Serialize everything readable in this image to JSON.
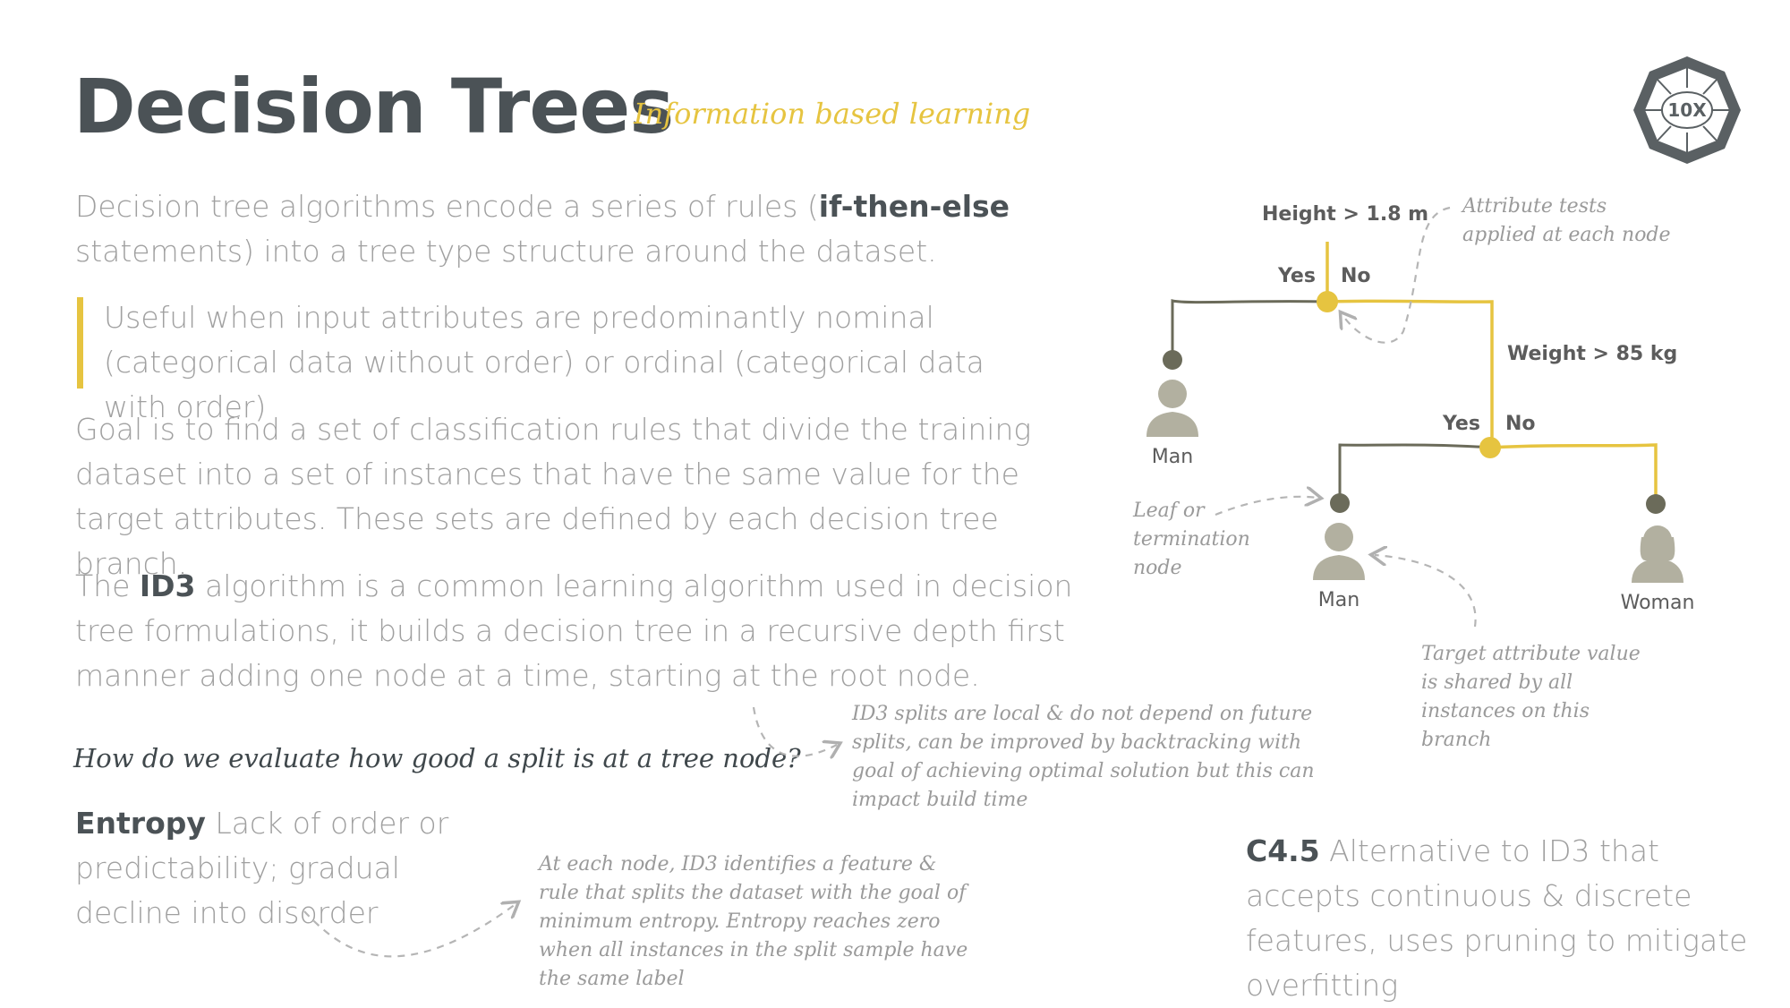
{
  "header": {
    "title": "Decision Trees",
    "subtitle": "Information based learning",
    "logo_text": "10X"
  },
  "paragraphs": {
    "p1_pre": "Decision tree algorithms encode a series of rules (",
    "p1_bold": "if-then-else",
    "p1_post": " statements) into a tree type structure around the dataset.",
    "quote": "Useful when input attributes are predominantly nominal (categorical data without order) or ordinal (categorical data with order)",
    "p2": "Goal is to find a set of classification rules that divide the training dataset into a set of instances that have the same value for the target attributes. These sets are defined by each decision tree branch.",
    "p3_pre": "The ",
    "p3_bold": "ID3",
    "p3_post": " algorithm is a common learning algorithm used in decision tree formulations, it builds a decision tree in a recursive depth first manner adding one node at a time, starting at the root node."
  },
  "question": "How do we evaluate how good a split is at a tree node?",
  "entropy": {
    "term": "Entropy",
    "definition": " Lack of order or predictability; gradual decline into disorder"
  },
  "c45": {
    "term": "C4.5",
    "definition": " Alternative to ID3 that accepts continuous & discrete features, uses pruning to mitigate overfitting"
  },
  "notes": {
    "id3_local": "ID3 splits are local & do not depend on future splits, can be improved by backtracking with goal of achieving optimal solution but this can impact build time",
    "entropy_note": "At each node, ID3 identifies a feature & rule that splits the dataset with the goal of minimum entropy.  Entropy reaches zero when all instances in the split sample have the same label",
    "attribute_tests": "Attribute tests applied at each node",
    "leaf": "Leaf or termination node",
    "target": "Target attribute value is shared by all instances on this branch"
  },
  "tree": {
    "root_test": "Height > 1.8 m",
    "root_yes": "Yes",
    "root_no": "No",
    "second_test": "Weight > 85 kg",
    "second_yes": "Yes",
    "second_no": "No",
    "leaf1": "Man",
    "leaf2": "Man",
    "leaf3": "Woman"
  },
  "colors": {
    "accent": "#e6c440",
    "dark_branch": "#6b6b5a",
    "text_dark": "#4b5256",
    "text_light": "#a0a0a0"
  }
}
